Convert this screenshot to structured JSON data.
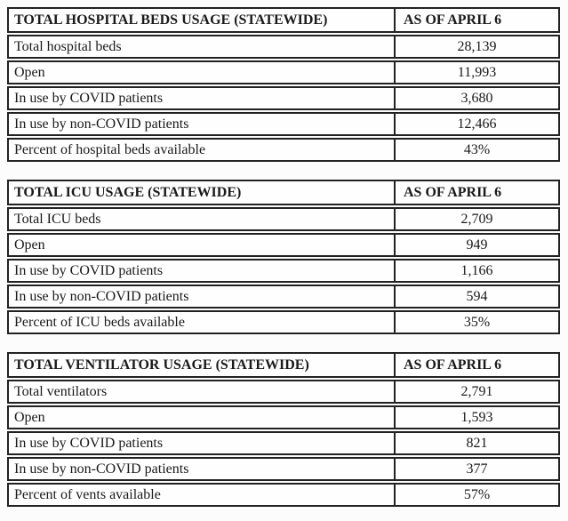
{
  "colors": {
    "border": "#222222",
    "text": "#1a1a1a",
    "background": "#fcfcfc"
  },
  "tables": [
    {
      "title": "TOTAL HOSPITAL BEDS USAGE (STATEWIDE)",
      "as_of": "AS OF APRIL 6",
      "rows": [
        {
          "label": "Total hospital beds",
          "value": "28,139"
        },
        {
          "label": "Open",
          "value": "11,993"
        },
        {
          "label": "In use by COVID patients",
          "value": "3,680"
        },
        {
          "label": "In use by non-COVID patients",
          "value": "12,466"
        },
        {
          "label": "Percent of hospital beds available",
          "value": "43%"
        }
      ]
    },
    {
      "title": "TOTAL ICU USAGE (STATEWIDE)",
      "as_of": "AS OF APRIL 6",
      "rows": [
        {
          "label": "Total ICU beds",
          "value": "2,709"
        },
        {
          "label": "Open",
          "value": "949"
        },
        {
          "label": "In use by COVID patients",
          "value": "1,166"
        },
        {
          "label": "In use by non-COVID patients",
          "value": "594"
        },
        {
          "label": "Percent of ICU beds available",
          "value": "35%"
        }
      ]
    },
    {
      "title": "TOTAL VENTILATOR USAGE (STATEWIDE)",
      "as_of": "AS OF APRIL 6",
      "rows": [
        {
          "label": "Total ventilators",
          "value": "2,791"
        },
        {
          "label": "Open",
          "value": "1,593"
        },
        {
          "label": "In use by COVID patients",
          "value": "821"
        },
        {
          "label": "In use by non-COVID patients",
          "value": "377"
        },
        {
          "label": "Percent of vents available",
          "value": "57%"
        }
      ]
    }
  ]
}
